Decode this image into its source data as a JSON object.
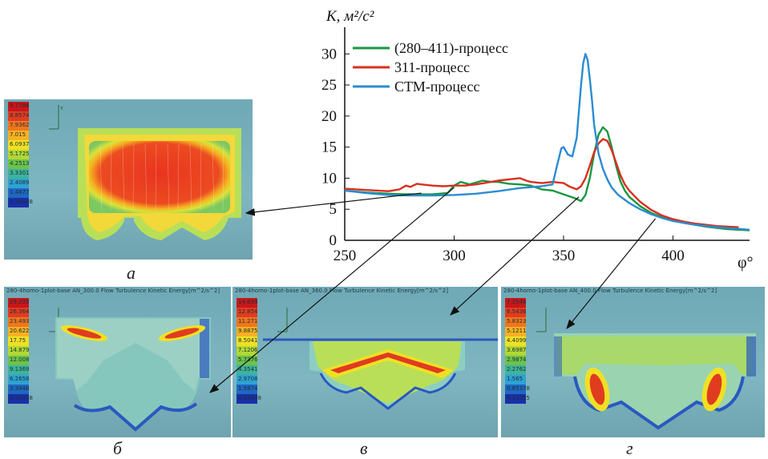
{
  "chart_data": {
    "type": "line",
    "ylabel": "K, м²/с²",
    "xlabel": "φ°",
    "xlim": [
      250,
      435
    ],
    "ylim": [
      0,
      33
    ],
    "xticks": [
      250,
      300,
      350,
      400
    ],
    "yticks": [
      0,
      5,
      10,
      15,
      20,
      25,
      30
    ],
    "legend_position": "top-left",
    "series": [
      {
        "name": "(280–411)-процесс",
        "color": "#1a9641",
        "x": [
          250,
          260,
          270,
          280,
          290,
          297,
          300,
          303,
          307,
          310,
          313,
          317,
          320,
          325,
          330,
          335,
          340,
          345,
          350,
          355,
          358,
          360,
          362,
          364,
          366,
          368,
          370,
          372,
          374,
          376,
          378,
          380,
          385,
          390,
          395,
          400,
          405,
          410,
          415,
          420,
          425,
          430,
          435
        ],
        "y": [
          8.0,
          7.7,
          7.5,
          7.4,
          7.4,
          7.6,
          8.8,
          9.4,
          9.0,
          9.3,
          9.6,
          9.4,
          9.4,
          9.1,
          9.0,
          8.8,
          8.2,
          8.0,
          7.4,
          6.8,
          6.3,
          7.3,
          10.0,
          14.0,
          17.0,
          18.2,
          17.5,
          15.0,
          12.0,
          9.5,
          8.0,
          7.0,
          5.5,
          4.4,
          3.7,
          3.2,
          2.8,
          2.5,
          2.2,
          2.0,
          1.8,
          1.7,
          1.6
        ]
      },
      {
        "name": "311-процесс",
        "color": "#d7301f",
        "x": [
          250,
          260,
          270,
          275,
          278,
          280,
          283,
          285,
          290,
          295,
          300,
          305,
          310,
          315,
          320,
          325,
          330,
          333,
          335,
          340,
          345,
          350,
          353,
          356,
          358,
          360,
          362,
          364,
          366,
          368,
          370,
          372,
          374,
          376,
          378,
          380,
          385,
          390,
          395,
          400,
          405,
          410,
          415,
          420,
          425,
          430
        ],
        "y": [
          8.3,
          8.1,
          7.9,
          8.2,
          8.8,
          8.6,
          9.1,
          9.0,
          8.8,
          8.7,
          8.8,
          8.8,
          9.0,
          9.3,
          9.6,
          9.8,
          10.0,
          9.6,
          9.4,
          9.2,
          9.4,
          9.2,
          8.6,
          8.2,
          8.7,
          10.0,
          12.0,
          14.2,
          15.6,
          16.3,
          16.0,
          14.5,
          12.5,
          10.5,
          9.0,
          8.0,
          6.2,
          4.9,
          4.0,
          3.4,
          3.0,
          2.7,
          2.5,
          2.3,
          2.2,
          2.1
        ]
      },
      {
        "name": "СТМ-процесс",
        "color": "#2b8cd1",
        "x": [
          250,
          260,
          270,
          280,
          290,
          300,
          310,
          320,
          330,
          340,
          345,
          347,
          349,
          350,
          352,
          354,
          356,
          358,
          359,
          360,
          361,
          362,
          363,
          364,
          366,
          368,
          370,
          372,
          375,
          380,
          385,
          390,
          395,
          400,
          410,
          420,
          435
        ],
        "y": [
          8.0,
          7.6,
          7.3,
          7.2,
          7.2,
          7.3,
          7.5,
          7.9,
          8.4,
          8.7,
          9.0,
          12.0,
          14.8,
          15.0,
          13.8,
          13.5,
          16.5,
          25.0,
          28.5,
          30.0,
          29.0,
          26.0,
          22.5,
          18.5,
          14.0,
          11.5,
          9.8,
          8.5,
          7.3,
          6.0,
          5.0,
          4.2,
          3.6,
          3.1,
          2.5,
          2.1,
          1.7
        ]
      }
    ]
  },
  "panels": {
    "a": {
      "letter": "а",
      "title": "",
      "colorbar": [
        "9.7786",
        "8.8574",
        "7.9362",
        "7.015",
        "6.0937",
        "5.1725",
        "4.2513",
        "3.3301",
        "2.4089",
        "1.4877",
        "0.56648"
      ]
    },
    "b": {
      "letter": "б",
      "title": "280-4homo-1plot-base AN_300.0 Flow Turbulence Kinetic Energy[m^2/s^2]",
      "colorbar": [
        "29.235",
        "26.364",
        "23.493",
        "20.622",
        "17.75",
        "14.879",
        "12.008",
        "9.1369",
        "6.2658",
        "3.3946",
        "0.52348"
      ]
    },
    "c": {
      "letter": "в",
      "title": "280-4homo-1plot-base AN_360.0 Flow Turbulence Kinetic Energy[m^2/s^2]",
      "colorbar": [
        "14.839",
        "12.854",
        "11.271",
        "9.8875",
        "8.5041",
        "7.1206",
        "5.7376",
        "4.3541",
        "2.9708",
        "1.5874",
        "0.20408"
      ]
    },
    "d": {
      "letter": "г",
      "title": "280-4homo-1plot-base AN_400.0 Flow Turbulence Kinetic Energy[m^2/s^2]",
      "colorbar": [
        "7.2546",
        "6.5436",
        "5.8323",
        "5.1211",
        "4.4099",
        "3.6987",
        "2.9874",
        "2.2762",
        "1.565",
        "0.85378",
        "0.14255"
      ]
    }
  },
  "colors": {
    "colormap": [
      "#c8171b",
      "#e03c20",
      "#f0761f",
      "#f6b121",
      "#f0e024",
      "#b2d835",
      "#6cc34a",
      "#3fb39b",
      "#2ea2d3",
      "#1f67c2",
      "#1a2fa8"
    ]
  }
}
